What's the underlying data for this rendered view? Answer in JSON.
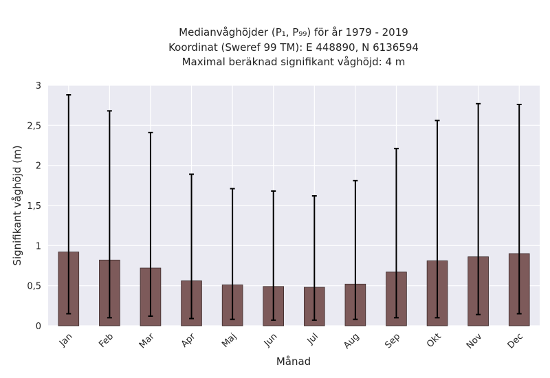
{
  "chart_data": {
    "type": "bar",
    "title_lines": [
      "Medianvåghöjder (P₁, P₉₉) för år 1979 - 2019",
      "Koordinat (Sweref 99 TM): E 448890, N 6136594",
      "Maximal beräknad signifikant våghöjd: 4 m"
    ],
    "xlabel": "Månad",
    "ylabel": "Signifikant våghöjd (m)",
    "categories": [
      "Jan",
      "Feb",
      "Mar",
      "Apr",
      "Maj",
      "Jun",
      "Jul",
      "Aug",
      "Sep",
      "Okt",
      "Nov",
      "Dec"
    ],
    "values": [
      0.92,
      0.82,
      0.72,
      0.56,
      0.51,
      0.49,
      0.48,
      0.52,
      0.67,
      0.81,
      0.86,
      0.9
    ],
    "p1": [
      0.15,
      0.1,
      0.12,
      0.09,
      0.08,
      0.07,
      0.07,
      0.08,
      0.1,
      0.1,
      0.14,
      0.15
    ],
    "p99": [
      2.88,
      2.68,
      2.41,
      1.89,
      1.71,
      1.68,
      1.62,
      1.81,
      2.21,
      2.56,
      2.77,
      2.76
    ],
    "ylim": [
      0,
      3
    ],
    "yticks": [
      0,
      0.5,
      1,
      1.5,
      2,
      2.5,
      3
    ],
    "ytick_labels": [
      "0",
      "0,5",
      "1",
      "1,5",
      "2",
      "2,5",
      "3"
    ],
    "grid": true,
    "colors": {
      "bar": "#7d5a5a",
      "bar_edge": "#3b2a2a",
      "plot_background": "#eaeaf2",
      "grid": "#ffffff",
      "error_bar": "#000000"
    }
  }
}
